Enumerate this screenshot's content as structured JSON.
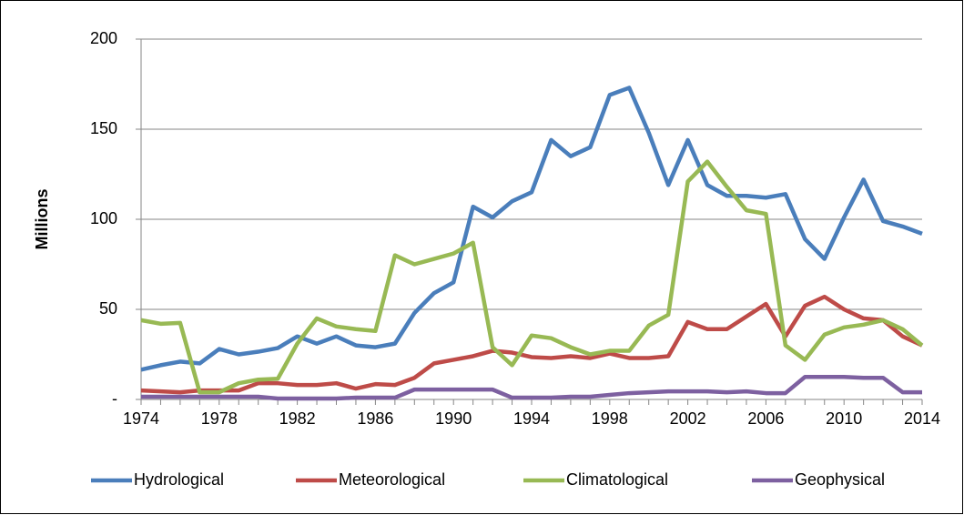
{
  "chart_data": {
    "type": "line",
    "y_label": "Millions",
    "x": [
      1974,
      1975,
      1976,
      1977,
      1978,
      1979,
      1980,
      1981,
      1982,
      1983,
      1984,
      1985,
      1986,
      1987,
      1988,
      1989,
      1990,
      1991,
      1992,
      1993,
      1994,
      1995,
      1996,
      1997,
      1998,
      1999,
      2000,
      2001,
      2002,
      2003,
      2004,
      2005,
      2006,
      2007,
      2008,
      2009,
      2010,
      2011,
      2012,
      2013,
      2014
    ],
    "series": [
      {
        "name": "Hydrological",
        "color": "#4a7ebb",
        "values": [
          16.5,
          19,
          21,
          20,
          28,
          25,
          26.5,
          28.5,
          35,
          31,
          35,
          30,
          29,
          31,
          48,
          59,
          65,
          107,
          101,
          110,
          115,
          144,
          135,
          140,
          169,
          173,
          148,
          119,
          144,
          119,
          113,
          113,
          112,
          114,
          89,
          78,
          101,
          122,
          99,
          96,
          92
        ]
      },
      {
        "name": "Meteorological",
        "color": "#be4b48",
        "values": [
          5,
          4.5,
          4,
          5,
          5,
          5,
          9,
          9,
          8,
          8,
          9,
          6,
          8.5,
          8,
          12,
          20,
          22,
          24,
          27,
          26,
          23.5,
          23,
          24,
          23,
          25.5,
          23,
          23,
          24,
          43,
          39,
          39,
          46,
          53,
          35,
          52,
          57,
          50,
          45,
          44,
          35,
          30
        ]
      },
      {
        "name": "Climatological",
        "color": "#98b954",
        "values": [
          44,
          42,
          42.5,
          4,
          4,
          9,
          11,
          11.5,
          31,
          45,
          40.5,
          39,
          38,
          80,
          75,
          78,
          81,
          87,
          29,
          19,
          35.5,
          34,
          29,
          25,
          27,
          27,
          41,
          47,
          121,
          132,
          118,
          105,
          103,
          30,
          22,
          36,
          40,
          41.5,
          44,
          39,
          30
        ]
      },
      {
        "name": "Geophysical",
        "color": "#7d60a0",
        "values": [
          1.5,
          1.5,
          1.5,
          1.5,
          1.5,
          1.5,
          1.5,
          0.5,
          0.5,
          0.5,
          0.5,
          1,
          1,
          1,
          5.5,
          5.5,
          5.5,
          5.5,
          5.5,
          1,
          1,
          1,
          1.5,
          1.5,
          2.5,
          3.5,
          4,
          4.5,
          4.5,
          4.5,
          4,
          4.5,
          3.5,
          3.5,
          12.5,
          12.5,
          12.5,
          12,
          12,
          4,
          4
        ]
      }
    ],
    "xlim": [
      1974,
      2014
    ],
    "xticks": [
      1974,
      1978,
      1982,
      1986,
      1990,
      1994,
      1998,
      2002,
      2006,
      2010,
      2014
    ],
    "ylim": [
      0,
      200
    ],
    "yticks": [
      {
        "value": 0,
        "label": "-"
      },
      50,
      100,
      150,
      200
    ],
    "grid": true,
    "legend": "bottom"
  }
}
